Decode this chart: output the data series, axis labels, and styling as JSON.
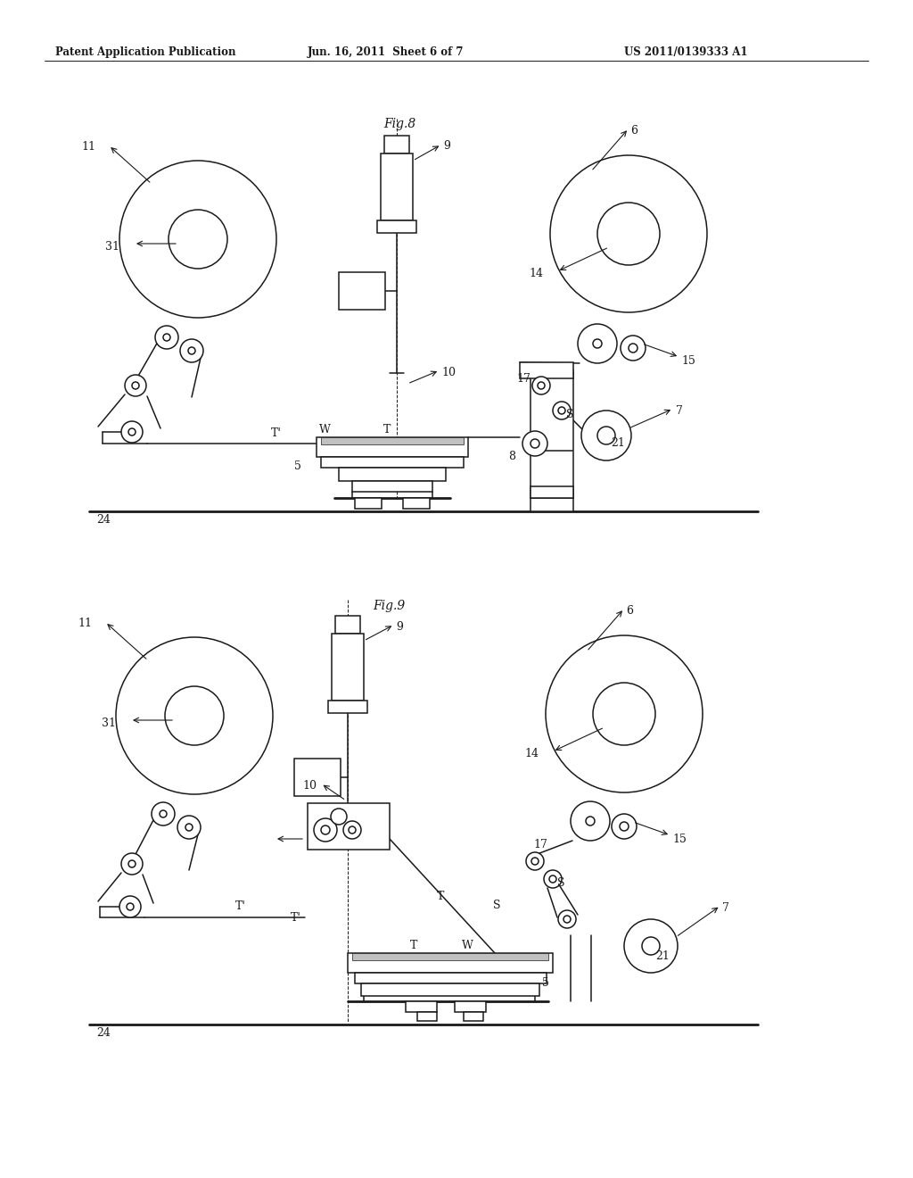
{
  "bg_color": "#ffffff",
  "header_left": "Patent Application Publication",
  "header_mid": "Jun. 16, 2011  Sheet 6 of 7",
  "header_right": "US 2011/0139333 A1",
  "fig8_title": "Fig.8",
  "fig9_title": "Fig.9",
  "lc": "#1a1a1a",
  "lw": 1.1,
  "tlw": 0.6,
  "thk": 2.0,
  "fs": 9,
  "hfs": 8.5,
  "tfs": 10
}
